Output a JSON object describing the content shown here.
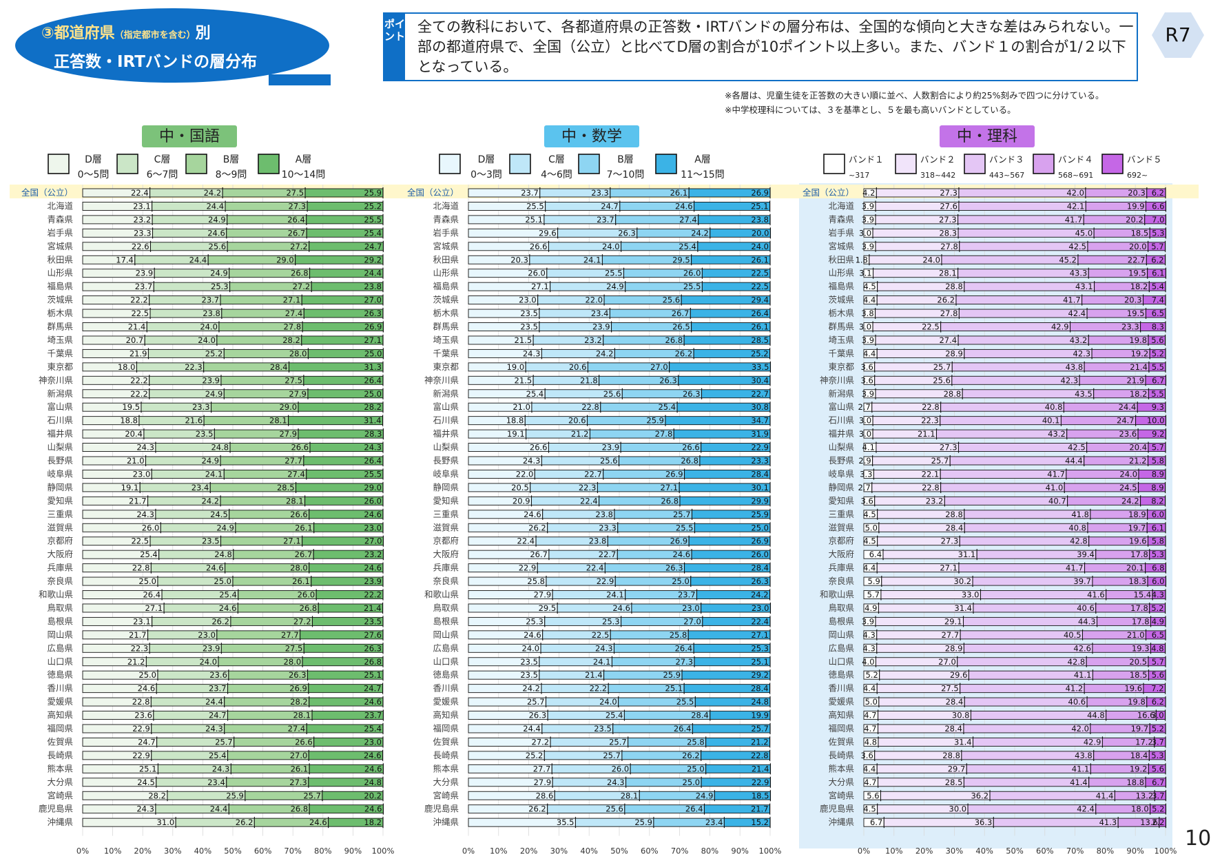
{
  "header": {
    "title_circle": "③",
    "title_main": "都道府県",
    "title_small": "（指定都市を含む）",
    "title_suffix": "別",
    "title_line2": "正答数・IRTバンドの層分布",
    "point_label": "ポイント",
    "point_text": "全ての教科において、各都道府県の正答数・IRTバンドの層分布は、全国的な傾向と大きな差はみられない。一部の都道府県で、全国（公立）と比べてD層の割合が10ポイント以上多い。また、バンド１の割合が1/２以下となっている。",
    "badge": "R7",
    "note1": "※各層は、児童生徒を正答数の大きい順に並べ、人数割合により約25%刻みで四つに分けている。",
    "note2": "※中学校理科については、３を基準とし、５を最も高いバンドとしている。"
  },
  "page_number": "10",
  "prefectures": [
    "全国（公立）",
    "北海道",
    "青森県",
    "岩手県",
    "宮城県",
    "秋田県",
    "山形県",
    "福島県",
    "茨城県",
    "栃木県",
    "群馬県",
    "埼玉県",
    "千葉県",
    "東京都",
    "神奈川県",
    "新潟県",
    "富山県",
    "石川県",
    "福井県",
    "山梨県",
    "長野県",
    "岐阜県",
    "静岡県",
    "愛知県",
    "三重県",
    "滋賀県",
    "京都府",
    "大阪府",
    "兵庫県",
    "奈良県",
    "和歌山県",
    "鳥取県",
    "島根県",
    "岡山県",
    "広島県",
    "山口県",
    "徳島県",
    "香川県",
    "愛媛県",
    "高知県",
    "福岡県",
    "佐賀県",
    "長崎県",
    "熊本県",
    "大分県",
    "宮崎県",
    "鹿児島県",
    "沖縄県"
  ],
  "colors": {
    "japanese": [
      "#eef6ec",
      "#cbe6c7",
      "#a6d59d",
      "#6dbd6e"
    ],
    "math": [
      "#e8f7fd",
      "#bfe7f8",
      "#8ed5f2",
      "#3bb3e6"
    ],
    "science": [
      "#ffffff",
      "#f1e4fa",
      "#e4c6f5",
      "#d8a2ee",
      "#c567e6"
    ],
    "tag_japanese": "#7cc27a",
    "tag_math": "#5bc3ee",
    "tag_science": "#c373e8",
    "highlight": "#fff7cc",
    "science_bg": "#ddeefa"
  },
  "chart_data": [
    {
      "type": "bar",
      "stacked": true,
      "orientation": "horizontal",
      "subject_tag": "中・国語",
      "legend": [
        {
          "name": "D層",
          "sub": "0～5問"
        },
        {
          "name": "C層",
          "sub": "6～7問"
        },
        {
          "name": "B層",
          "sub": "8～9問"
        },
        {
          "name": "A層",
          "sub": "10～14問"
        }
      ],
      "xlim": [
        0,
        100
      ],
      "xticks": [
        "0%",
        "10%",
        "20%",
        "30%",
        "40%",
        "50%",
        "60%",
        "70%",
        "80%",
        "90%",
        "100%"
      ],
      "values": [
        [
          22.4,
          24.2,
          27.5,
          25.9
        ],
        [
          23.1,
          24.4,
          27.3,
          25.2
        ],
        [
          23.2,
          24.9,
          26.4,
          25.5
        ],
        [
          23.3,
          24.6,
          26.7,
          25.4
        ],
        [
          22.6,
          25.6,
          27.2,
          24.7
        ],
        [
          17.4,
          24.4,
          29.0,
          29.2
        ],
        [
          23.9,
          24.9,
          26.8,
          24.4
        ],
        [
          23.7,
          25.3,
          27.2,
          23.8
        ],
        [
          22.2,
          23.7,
          27.1,
          27.0
        ],
        [
          22.5,
          23.8,
          27.4,
          26.3
        ],
        [
          21.4,
          24.0,
          27.8,
          26.9
        ],
        [
          20.7,
          24.0,
          28.2,
          27.1
        ],
        [
          21.9,
          25.2,
          28.0,
          25.0
        ],
        [
          18.0,
          22.3,
          28.4,
          31.3
        ],
        [
          22.2,
          23.9,
          27.5,
          26.4
        ],
        [
          22.2,
          24.9,
          27.9,
          25.0
        ],
        [
          19.5,
          23.3,
          29.0,
          28.2
        ],
        [
          18.8,
          21.6,
          28.1,
          31.4
        ],
        [
          20.4,
          23.5,
          27.9,
          28.3
        ],
        [
          24.3,
          24.8,
          26.6,
          24.3
        ],
        [
          21.0,
          24.9,
          27.7,
          26.4
        ],
        [
          23.0,
          24.1,
          27.4,
          25.5
        ],
        [
          19.1,
          23.4,
          28.5,
          29.0
        ],
        [
          21.7,
          24.2,
          28.1,
          26.0
        ],
        [
          24.3,
          24.5,
          26.6,
          24.6
        ],
        [
          26.0,
          24.9,
          26.1,
          23.0
        ],
        [
          22.5,
          23.5,
          27.1,
          27.0
        ],
        [
          25.4,
          24.8,
          26.7,
          23.2
        ],
        [
          22.8,
          24.6,
          28.0,
          24.6
        ],
        [
          25.0,
          25.0,
          26.1,
          23.9
        ],
        [
          26.4,
          25.4,
          26.0,
          22.2
        ],
        [
          27.1,
          24.6,
          26.8,
          21.4
        ],
        [
          23.1,
          26.2,
          27.2,
          23.5
        ],
        [
          21.7,
          23.0,
          27.7,
          27.6
        ],
        [
          22.3,
          23.9,
          27.5,
          26.3
        ],
        [
          21.2,
          24.0,
          28.0,
          26.8
        ],
        [
          25.0,
          23.6,
          26.3,
          25.1
        ],
        [
          24.6,
          23.7,
          26.9,
          24.7
        ],
        [
          22.8,
          24.4,
          28.2,
          24.6
        ],
        [
          23.6,
          24.7,
          28.1,
          23.7
        ],
        [
          22.9,
          24.3,
          27.4,
          25.4
        ],
        [
          24.7,
          25.7,
          26.6,
          23.0
        ],
        [
          22.9,
          25.4,
          27.0,
          24.6
        ],
        [
          25.1,
          24.3,
          26.1,
          24.6
        ],
        [
          24.5,
          23.4,
          27.3,
          24.8
        ],
        [
          28.2,
          25.9,
          25.7,
          20.2
        ],
        [
          24.3,
          24.4,
          26.8,
          24.6
        ],
        [
          31.0,
          26.2,
          24.6,
          18.2
        ]
      ]
    },
    {
      "type": "bar",
      "stacked": true,
      "orientation": "horizontal",
      "subject_tag": "中・数学",
      "legend": [
        {
          "name": "D層",
          "sub": "0～3問"
        },
        {
          "name": "C層",
          "sub": "4～6問"
        },
        {
          "name": "B層",
          "sub": "7～10問"
        },
        {
          "name": "A層",
          "sub": "11～15問"
        }
      ],
      "xlim": [
        0,
        100
      ],
      "xticks": [
        "0%",
        "10%",
        "20%",
        "30%",
        "40%",
        "50%",
        "60%",
        "70%",
        "80%",
        "90%",
        "100%"
      ],
      "values": [
        [
          23.7,
          23.3,
          26.1,
          26.9
        ],
        [
          25.5,
          24.7,
          24.6,
          25.1
        ],
        [
          25.1,
          23.7,
          27.4,
          23.8
        ],
        [
          29.6,
          26.3,
          24.2,
          20.0
        ],
        [
          26.6,
          24.0,
          25.4,
          24.0
        ],
        [
          20.3,
          24.1,
          29.5,
          26.1
        ],
        [
          26.0,
          25.5,
          26.0,
          22.5
        ],
        [
          27.1,
          24.9,
          25.5,
          22.5
        ],
        [
          23.0,
          22.0,
          25.6,
          29.4
        ],
        [
          23.5,
          23.4,
          26.7,
          26.4
        ],
        [
          23.5,
          23.9,
          26.5,
          26.1
        ],
        [
          21.5,
          23.2,
          26.8,
          28.5
        ],
        [
          24.3,
          24.2,
          26.2,
          25.2
        ],
        [
          19.0,
          20.6,
          27.0,
          33.5
        ],
        [
          21.5,
          21.8,
          26.3,
          30.4
        ],
        [
          25.4,
          25.6,
          26.3,
          22.7
        ],
        [
          21.0,
          22.8,
          25.4,
          30.8
        ],
        [
          18.8,
          20.6,
          25.9,
          34.7
        ],
        [
          19.1,
          21.2,
          27.8,
          31.9
        ],
        [
          26.6,
          23.9,
          26.6,
          22.9
        ],
        [
          24.3,
          25.6,
          26.8,
          23.3
        ],
        [
          22.0,
          22.7,
          26.9,
          28.4
        ],
        [
          20.5,
          22.3,
          27.1,
          30.1
        ],
        [
          20.9,
          22.4,
          26.8,
          29.9
        ],
        [
          24.6,
          23.8,
          25.7,
          25.9
        ],
        [
          26.2,
          23.3,
          25.5,
          25.0
        ],
        [
          22.4,
          23.8,
          26.9,
          26.9
        ],
        [
          26.7,
          22.7,
          24.6,
          26.0
        ],
        [
          22.9,
          22.4,
          26.3,
          28.4
        ],
        [
          25.8,
          22.9,
          25.0,
          26.3
        ],
        [
          27.9,
          24.1,
          23.7,
          24.2
        ],
        [
          29.5,
          24.6,
          23.0,
          23.0
        ],
        [
          25.3,
          25.3,
          27.0,
          22.4
        ],
        [
          24.6,
          22.5,
          25.8,
          27.1
        ],
        [
          24.0,
          24.3,
          26.4,
          25.3
        ],
        [
          23.5,
          24.1,
          27.3,
          25.1
        ],
        [
          23.5,
          21.4,
          25.9,
          29.2
        ],
        [
          24.2,
          22.2,
          25.1,
          28.4
        ],
        [
          25.7,
          24.0,
          25.5,
          24.8
        ],
        [
          26.3,
          25.4,
          28.4,
          19.9
        ],
        [
          24.4,
          23.5,
          26.4,
          25.7
        ],
        [
          27.2,
          25.7,
          25.8,
          21.2
        ],
        [
          25.2,
          25.7,
          26.2,
          22.8
        ],
        [
          27.7,
          26.0,
          25.0,
          21.4
        ],
        [
          27.9,
          24.3,
          25.0,
          22.9
        ],
        [
          28.6,
          28.1,
          24.9,
          18.5
        ],
        [
          26.2,
          25.6,
          26.4,
          21.7
        ],
        [
          35.5,
          25.9,
          23.4,
          15.2
        ]
      ]
    },
    {
      "type": "bar",
      "stacked": true,
      "orientation": "horizontal",
      "subject_tag": "中・理科",
      "legend": [
        {
          "name": "バンド１",
          "sub": "~317"
        },
        {
          "name": "バンド２",
          "sub": "318~442"
        },
        {
          "name": "バンド３",
          "sub": "443~567"
        },
        {
          "name": "バンド４",
          "sub": "568~691"
        },
        {
          "name": "バンド５",
          "sub": "692~"
        }
      ],
      "xlim": [
        0,
        100
      ],
      "xticks": [
        "0%",
        "10%",
        "20%",
        "30%",
        "40%",
        "50%",
        "60%",
        "70%",
        "80%",
        "90%",
        "100%"
      ],
      "values": [
        [
          4.2,
          27.3,
          42.0,
          20.3,
          6.2
        ],
        [
          3.9,
          27.6,
          42.1,
          19.9,
          6.6
        ],
        [
          3.9,
          27.3,
          41.7,
          20.2,
          7.0
        ],
        [
          3.0,
          28.3,
          45.0,
          18.5,
          5.3
        ],
        [
          3.9,
          27.8,
          42.5,
          20.0,
          5.7
        ],
        [
          1.8,
          24.0,
          45.2,
          22.7,
          6.2
        ],
        [
          3.1,
          28.1,
          43.3,
          19.5,
          6.1
        ],
        [
          4.5,
          28.8,
          43.1,
          18.2,
          5.4
        ],
        [
          4.4,
          26.2,
          41.7,
          20.3,
          7.4
        ],
        [
          3.8,
          27.8,
          42.4,
          19.5,
          6.5
        ],
        [
          3.0,
          22.5,
          42.9,
          23.3,
          8.3
        ],
        [
          3.9,
          27.4,
          43.2,
          19.8,
          5.6
        ],
        [
          4.4,
          28.9,
          42.3,
          19.2,
          5.2
        ],
        [
          3.6,
          25.7,
          43.8,
          21.4,
          5.5
        ],
        [
          3.6,
          25.6,
          42.3,
          21.9,
          6.7
        ],
        [
          3.9,
          28.8,
          43.5,
          18.2,
          5.5
        ],
        [
          2.7,
          22.8,
          40.8,
          24.4,
          9.3
        ],
        [
          3.0,
          22.3,
          40.1,
          24.7,
          10.0
        ],
        [
          3.0,
          21.1,
          43.2,
          23.6,
          9.2
        ],
        [
          4.1,
          27.3,
          42.5,
          20.4,
          5.7
        ],
        [
          2.9,
          25.7,
          44.4,
          21.2,
          5.8
        ],
        [
          3.3,
          22.1,
          41.7,
          24.0,
          8.9
        ],
        [
          2.7,
          22.8,
          41.0,
          24.5,
          8.9
        ],
        [
          3.6,
          23.2,
          40.7,
          24.2,
          8.2
        ],
        [
          4.5,
          28.8,
          41.8,
          18.9,
          6.0
        ],
        [
          5.0,
          28.4,
          40.8,
          19.7,
          6.1
        ],
        [
          4.5,
          27.3,
          42.8,
          19.6,
          5.8
        ],
        [
          6.4,
          31.1,
          39.4,
          17.8,
          5.3
        ],
        [
          4.4,
          27.1,
          41.7,
          20.1,
          6.8
        ],
        [
          5.9,
          30.2,
          39.7,
          18.3,
          6.0
        ],
        [
          5.7,
          33.0,
          41.6,
          15.4,
          4.3
        ],
        [
          4.9,
          31.4,
          40.6,
          17.8,
          5.2
        ],
        [
          3.9,
          29.1,
          44.3,
          17.8,
          4.9
        ],
        [
          4.3,
          27.7,
          40.5,
          21.0,
          6.5
        ],
        [
          4.3,
          28.9,
          42.6,
          19.3,
          4.8
        ],
        [
          4.0,
          27.0,
          42.8,
          20.5,
          5.7
        ],
        [
          5.2,
          29.6,
          41.1,
          18.5,
          5.6
        ],
        [
          4.4,
          27.5,
          41.2,
          19.6,
          7.2
        ],
        [
          5.0,
          28.4,
          40.6,
          19.8,
          6.2
        ],
        [
          4.7,
          30.8,
          44.8,
          16.6,
          3.0
        ],
        [
          4.7,
          28.4,
          42.0,
          19.7,
          5.2
        ],
        [
          4.8,
          31.4,
          42.9,
          17.2,
          3.7
        ],
        [
          3.6,
          28.8,
          43.8,
          18.4,
          5.3
        ],
        [
          4.4,
          29.7,
          41.1,
          19.2,
          5.6
        ],
        [
          4.7,
          28.5,
          41.4,
          18.8,
          6.7
        ],
        [
          5.6,
          36.2,
          41.4,
          13.2,
          3.7
        ],
        [
          4.5,
          30.0,
          42.4,
          18.0,
          5.2
        ],
        [
          6.7,
          36.3,
          41.3,
          13.6,
          2.2
        ]
      ]
    }
  ]
}
